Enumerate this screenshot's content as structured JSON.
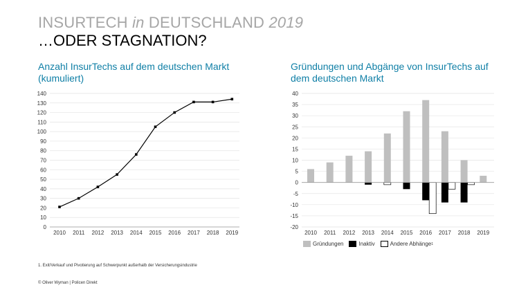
{
  "header": {
    "title_a": "INSURTECH ",
    "title_b": "in",
    "title_c": " DEUTSCHLAND ",
    "title_d": "2019",
    "subtitle": "…ODER STAGNATION?"
  },
  "footnote": "1. Exit/Verkauf und Pivotierung auf Schwerpunkt außerhalb der Versicherungsindustrie",
  "copyright": "© Oliver Wyman | Policen Direkt",
  "colors": {
    "accent": "#0f7fa6",
    "gruendungen": "#bfbfbf",
    "inaktiv": "#000000",
    "andere": "#ffffff"
  },
  "chart_data": [
    {
      "type": "line",
      "title": "Anzahl InsurTechs auf dem deutschen Markt (kumuliert)",
      "x": [
        "2010",
        "2011",
        "2012",
        "2013",
        "2014",
        "2015",
        "2016",
        "2017",
        "2018",
        "2019"
      ],
      "values": [
        21,
        30,
        42,
        55,
        76,
        105,
        120,
        131,
        131,
        134
      ],
      "ylim": [
        0,
        140
      ],
      "yticks": [
        0,
        10,
        20,
        30,
        40,
        50,
        60,
        70,
        80,
        90,
        100,
        110,
        120,
        130,
        140
      ],
      "grid": true
    },
    {
      "type": "bar",
      "title": "Gründungen und Abgänge von InsurTechs auf dem deutschen Markt",
      "categories": [
        "2010",
        "2011",
        "2012",
        "2013",
        "2014",
        "2015",
        "2016",
        "2017",
        "2018",
        "2019"
      ],
      "series": [
        {
          "name": "Gründungen",
          "values": [
            6,
            9,
            12,
            14,
            22,
            32,
            37,
            23,
            10,
            3
          ]
        },
        {
          "name": "Inaktiv",
          "values": [
            0,
            0,
            0,
            -1,
            0,
            -3,
            -8,
            -9,
            -9,
            0
          ]
        },
        {
          "name": "Andere Abhänge",
          "values": [
            0,
            0,
            0,
            0,
            -1,
            0,
            -14,
            -3,
            -1,
            0
          ]
        }
      ],
      "legend_sup": "1",
      "ylim": [
        -20,
        40
      ],
      "yticks": [
        40,
        35,
        30,
        25,
        20,
        15,
        10,
        5,
        0,
        -5,
        -10,
        -15,
        -20
      ],
      "grid": true,
      "legend": "bottom"
    }
  ]
}
